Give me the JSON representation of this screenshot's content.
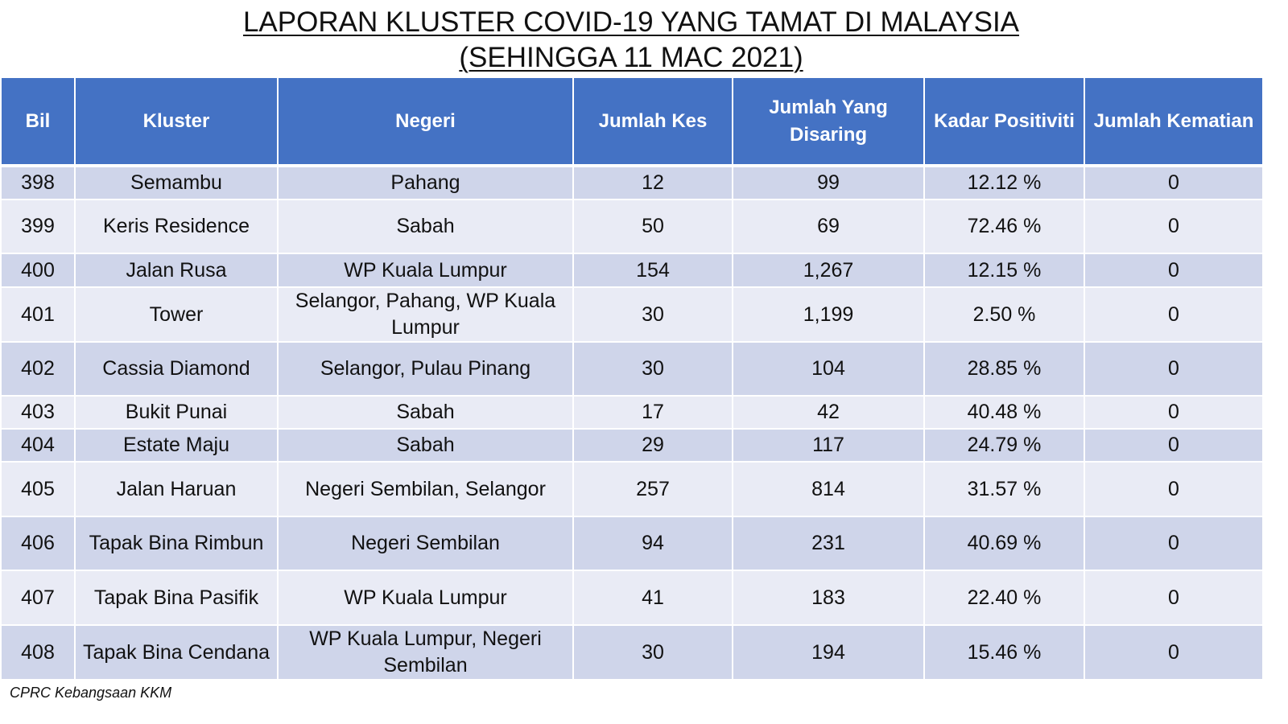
{
  "title": {
    "line1": "LAPORAN KLUSTER COVID-19 YANG TAMAT DI MALAYSIA",
    "line2": "(SEHINGGA  11 MAC 2021)"
  },
  "table": {
    "headers": [
      "Bil",
      "Kluster",
      "Negeri",
      "Jumlah Kes",
      "Jumlah Yang Disaring",
      "Kadar Positiviti",
      "Jumlah Kematian"
    ],
    "rows": [
      [
        "398",
        "Semambu",
        "Pahang",
        "12",
        "99",
        "12.12 %",
        "0"
      ],
      [
        "399",
        "Keris Residence",
        "Sabah",
        "50",
        "69",
        "72.46 %",
        "0"
      ],
      [
        "400",
        "Jalan Rusa",
        "WP Kuala Lumpur",
        "154",
        "1,267",
        "12.15 %",
        "0"
      ],
      [
        "401",
        "Tower",
        "Selangor, Pahang, WP Kuala Lumpur",
        "30",
        "1,199",
        "2.50 %",
        "0"
      ],
      [
        "402",
        "Cassia Diamond",
        "Selangor, Pulau Pinang",
        "30",
        "104",
        "28.85 %",
        "0"
      ],
      [
        "403",
        "Bukit Punai",
        "Sabah",
        "17",
        "42",
        "40.48 %",
        "0"
      ],
      [
        "404",
        "Estate Maju",
        "Sabah",
        "29",
        "117",
        "24.79 %",
        "0"
      ],
      [
        "405",
        "Jalan Haruan",
        "Negeri Sembilan, Selangor",
        "257",
        "814",
        "31.57 %",
        "0"
      ],
      [
        "406",
        "Tapak Bina Rimbun",
        "Negeri Sembilan",
        "94",
        "231",
        "40.69 %",
        "0"
      ],
      [
        "407",
        "Tapak Bina Pasifik",
        "WP Kuala Lumpur",
        "41",
        "183",
        "22.40 %",
        "0"
      ],
      [
        "408",
        "Tapak Bina Cendana",
        "WP Kuala Lumpur, Negeri Sembilan",
        "30",
        "194",
        "15.46 %",
        "0"
      ]
    ]
  },
  "footer": "CPRC Kebangsaan KKM",
  "colors": {
    "header_bg": "#4472c4",
    "row_odd": "#cfd5ea",
    "row_even": "#e9ebf5"
  }
}
